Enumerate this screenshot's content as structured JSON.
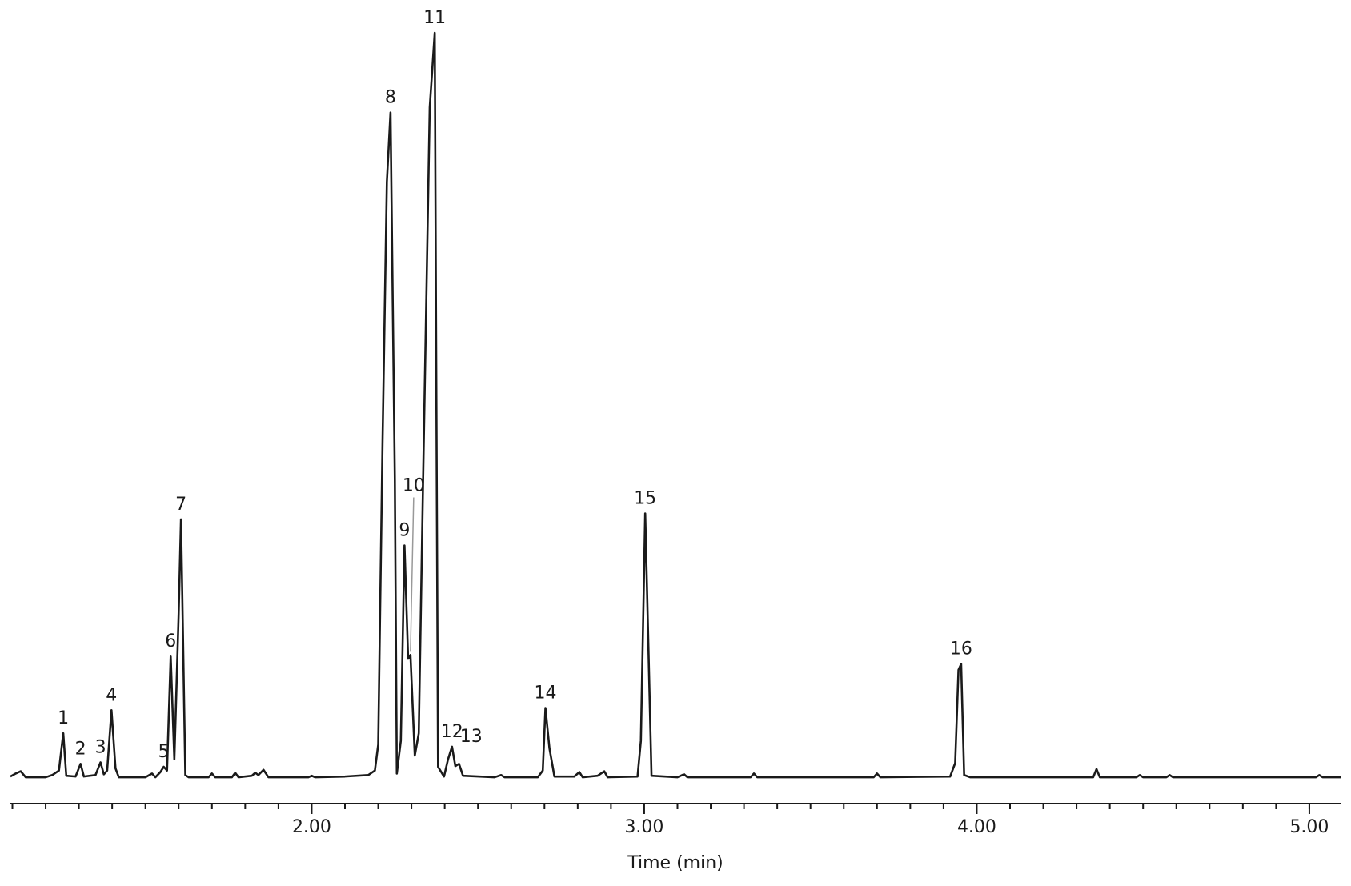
{
  "chart_data": {
    "type": "line",
    "xlabel": "Time (min)",
    "xlim": [
      1.094,
      5.094
    ],
    "ylim": [
      0,
      100
    ],
    "xticks": [
      {
        "value": 2,
        "label": "2.00"
      },
      {
        "value": 3,
        "label": "3.00"
      },
      {
        "value": 4,
        "label": "4.00"
      },
      {
        "value": 5,
        "label": "5.00"
      }
    ],
    "xminor_ticks": [
      1.1,
      1.2,
      1.3,
      1.4,
      1.5,
      1.6,
      1.7,
      1.8,
      1.9,
      2.1,
      2.2,
      2.3,
      2.4,
      2.5,
      2.6,
      2.7,
      2.8,
      2.9,
      3.1,
      3.2,
      3.3,
      3.4,
      3.5,
      3.6,
      3.7,
      3.8,
      3.9,
      4.1,
      4.2,
      4.3,
      4.4,
      4.5,
      4.6,
      4.7,
      4.8,
      4.9,
      5.0
    ],
    "color": "#1a1a1a",
    "x": [
      1.094,
      1.11,
      1.125,
      1.14,
      1.2,
      1.22,
      1.24,
      1.253,
      1.262,
      1.29,
      1.305,
      1.315,
      1.35,
      1.365,
      1.375,
      1.385,
      1.398,
      1.41,
      1.42,
      1.5,
      1.52,
      1.53,
      1.545,
      1.555,
      1.565,
      1.576,
      1.587,
      1.6,
      1.607,
      1.62,
      1.63,
      1.69,
      1.7,
      1.71,
      1.76,
      1.77,
      1.78,
      1.82,
      1.83,
      1.84,
      1.855,
      1.87,
      1.99,
      2.0,
      2.01,
      2.1,
      2.17,
      2.19,
      2.2,
      2.213,
      2.226,
      2.237,
      2.25,
      2.256,
      2.268,
      2.279,
      2.29,
      2.297,
      2.31,
      2.322,
      2.335,
      2.355,
      2.37,
      2.38,
      2.398,
      2.41,
      2.422,
      2.432,
      2.443,
      2.455,
      2.55,
      2.57,
      2.58,
      2.68,
      2.695,
      2.703,
      2.715,
      2.73,
      2.79,
      2.805,
      2.815,
      2.86,
      2.88,
      2.89,
      2.98,
      2.99,
      3.003,
      3.022,
      3.1,
      3.12,
      3.13,
      3.32,
      3.33,
      3.34,
      3.69,
      3.7,
      3.71,
      3.92,
      3.935,
      3.945,
      3.953,
      3.962,
      3.98,
      4.35,
      4.36,
      4.37,
      4.48,
      4.49,
      4.5,
      4.57,
      4.58,
      4.59,
      5.02,
      5.03,
      5.04,
      5.094
    ],
    "values": [
      0.2,
      0.6,
      0.9,
      0.1,
      0.1,
      0.4,
      1.0,
      6.0,
      0.3,
      0.2,
      1.9,
      0.2,
      0.4,
      2.1,
      0.5,
      1.0,
      9.1,
      1.3,
      0.1,
      0.1,
      0.6,
      0.1,
      0.8,
      1.5,
      1.0,
      16.3,
      2.5,
      22,
      34.7,
      0.4,
      0.1,
      0.1,
      0.6,
      0.1,
      0.1,
      0.7,
      0.1,
      0.3,
      0.7,
      0.4,
      1.1,
      0.1,
      0.1,
      0.3,
      0.1,
      0.2,
      0.4,
      1.0,
      4.5,
      45,
      80,
      89.3,
      40,
      0.6,
      5,
      31.2,
      16,
      16.5,
      3,
      6,
      40,
      90,
      100,
      1.5,
      0.2,
      2.5,
      4.2,
      1.6,
      1.9,
      0.3,
      0.1,
      0.4,
      0.1,
      0.1,
      1.0,
      9.4,
      4,
      0.2,
      0.2,
      0.8,
      0.1,
      0.3,
      0.9,
      0.1,
      0.2,
      5,
      35.5,
      0.3,
      0.1,
      0.5,
      0.1,
      0.1,
      0.6,
      0.1,
      0.1,
      0.6,
      0.1,
      0.2,
      2.0,
      14.5,
      15.3,
      0.4,
      0.1,
      0.1,
      1.2,
      0.1,
      0.1,
      0.4,
      0.1,
      0.1,
      0.4,
      0.1,
      0.1,
      0.4,
      0.1,
      0.1
    ],
    "peaks": [
      {
        "label": "1",
        "x": 1.253,
        "y": 6.0
      },
      {
        "label": "2",
        "x": 1.305,
        "y": 1.9
      },
      {
        "label": "3",
        "x": 1.365,
        "y": 2.1
      },
      {
        "label": "4",
        "x": 1.398,
        "y": 9.1
      },
      {
        "label": "5",
        "x": 1.555,
        "y": 1.5
      },
      {
        "label": "6",
        "x": 1.576,
        "y": 16.3
      },
      {
        "label": "7",
        "x": 1.607,
        "y": 34.7
      },
      {
        "label": "8",
        "x": 2.237,
        "y": 89.3
      },
      {
        "label": "9",
        "x": 2.279,
        "y": 31.2
      },
      {
        "label": "10",
        "x": 2.297,
        "y": 16.5
      },
      {
        "label": "11",
        "x": 2.37,
        "y": 100
      },
      {
        "label": "12",
        "x": 2.422,
        "y": 4.2
      },
      {
        "label": "13",
        "x": 2.443,
        "y": 1.9
      },
      {
        "label": "14",
        "x": 2.703,
        "y": 9.4
      },
      {
        "label": "15",
        "x": 3.003,
        "y": 35.5
      },
      {
        "label": "16",
        "x": 3.953,
        "y": 15.3
      }
    ]
  }
}
